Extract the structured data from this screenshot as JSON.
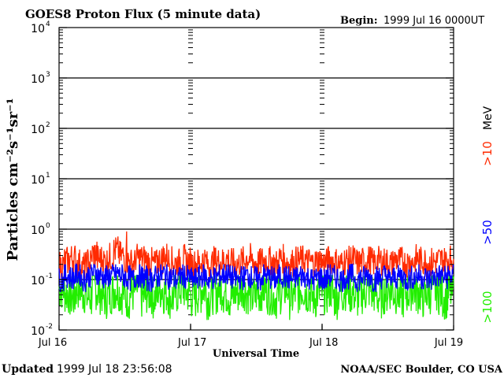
{
  "header": {
    "title": "GOES8 Proton Flux (5 minute data)",
    "begin_label": "Begin:",
    "begin_value": "1999 Jul 16 0000UT"
  },
  "footer": {
    "updated_label": "Updated",
    "updated_value": "1999 Jul 18 23:56:08",
    "credit": "NOAA/SEC Boulder, CO USA"
  },
  "chart_data": {
    "type": "line",
    "title": "GOES8 Proton Flux (5 minute data)",
    "xlabel": "Universal Time",
    "ylabel": "Particles cm⁻²s⁻¹sr⁻¹",
    "yscale": "log",
    "ylim": [
      0.01,
      10000
    ],
    "xlim_hours": [
      0,
      72
    ],
    "x_ticks": [
      {
        "hour": 0,
        "label": "Jul 16"
      },
      {
        "hour": 24,
        "label": "Jul 17"
      },
      {
        "hour": 48,
        "label": "Jul 18"
      },
      {
        "hour": 72,
        "label": "Jul 19"
      }
    ],
    "y_ticks": [
      {
        "value": 0.01,
        "base": "10",
        "exp": "-2"
      },
      {
        "value": 0.1,
        "base": "10",
        "exp": "-1"
      },
      {
        "value": 1,
        "base": "10",
        "exp": "0"
      },
      {
        "value": 10,
        "base": "10",
        "exp": "1"
      },
      {
        "value": 100,
        "base": "10",
        "exp": "2"
      },
      {
        "value": 1000,
        "base": "10",
        "exp": "3"
      },
      {
        "value": 10000,
        "base": "10",
        "exp": "4"
      }
    ],
    "grid": {
      "horizontal_decades": true
    },
    "legend_unit": "MeV",
    "series": [
      {
        "name": ">10",
        "color": "#ff2a00",
        "typical": 0.2,
        "min": 0.1,
        "max": 0.9,
        "samples_per_hour": [
          0.18,
          0.22,
          0.25,
          0.2,
          0.17,
          0.21,
          0.3,
          0.24,
          0.22,
          0.26,
          0.35,
          0.28,
          0.22,
          0.2,
          0.25,
          0.24,
          0.21,
          0.19,
          0.23,
          0.27,
          0.22,
          0.2,
          0.24,
          0.21,
          0.19,
          0.2,
          0.23,
          0.18,
          0.22,
          0.21,
          0.24,
          0.2,
          0.19,
          0.22,
          0.25,
          0.21,
          0.2,
          0.23,
          0.22,
          0.19,
          0.24,
          0.21,
          0.2,
          0.22,
          0.23,
          0.21,
          0.2,
          0.22,
          0.2,
          0.23,
          0.21,
          0.19,
          0.22,
          0.24,
          0.2,
          0.21,
          0.23,
          0.2,
          0.22,
          0.21,
          0.19,
          0.23,
          0.22,
          0.2,
          0.21,
          0.24,
          0.22,
          0.2,
          0.21,
          0.23,
          0.22,
          0.24
        ]
      },
      {
        "name": ">50",
        "color": "#0000ff",
        "typical": 0.11,
        "min": 0.05,
        "max": 0.2,
        "samples_per_hour": [
          0.1,
          0.12,
          0.11,
          0.13,
          0.1,
          0.12,
          0.14,
          0.12,
          0.11,
          0.12,
          0.13,
          0.12,
          0.11,
          0.1,
          0.12,
          0.11,
          0.1,
          0.11,
          0.12,
          0.13,
          0.11,
          0.1,
          0.12,
          0.11,
          0.1,
          0.11,
          0.12,
          0.1,
          0.11,
          0.12,
          0.13,
          0.11,
          0.1,
          0.11,
          0.12,
          0.11,
          0.1,
          0.12,
          0.11,
          0.1,
          0.12,
          0.11,
          0.1,
          0.11,
          0.12,
          0.11,
          0.1,
          0.11,
          0.1,
          0.12,
          0.11,
          0.1,
          0.11,
          0.12,
          0.1,
          0.11,
          0.12,
          0.1,
          0.11,
          0.12,
          0.1,
          0.11,
          0.12,
          0.1,
          0.11,
          0.12,
          0.11,
          0.1,
          0.11,
          0.12,
          0.11,
          0.12
        ]
      },
      {
        "name": ">100",
        "color": "#22ee00",
        "typical": 0.05,
        "min": 0.015,
        "max": 0.12,
        "samples_per_hour": [
          0.06,
          0.05,
          0.04,
          0.06,
          0.05,
          0.04,
          0.06,
          0.05,
          0.04,
          0.05,
          0.06,
          0.05,
          0.04,
          0.05,
          0.06,
          0.04,
          0.05,
          0.04,
          0.06,
          0.05,
          0.04,
          0.05,
          0.06,
          0.05,
          0.04,
          0.05,
          0.06,
          0.04,
          0.05,
          0.06,
          0.05,
          0.04,
          0.05,
          0.06,
          0.05,
          0.04,
          0.05,
          0.06,
          0.05,
          0.04,
          0.05,
          0.06,
          0.04,
          0.05,
          0.06,
          0.05,
          0.04,
          0.05,
          0.05,
          0.06,
          0.04,
          0.05,
          0.06,
          0.05,
          0.04,
          0.05,
          0.06,
          0.05,
          0.04,
          0.05,
          0.06,
          0.05,
          0.04,
          0.05,
          0.06,
          0.05,
          0.04,
          0.05,
          0.06,
          0.05,
          0.04,
          0.05
        ]
      }
    ]
  }
}
